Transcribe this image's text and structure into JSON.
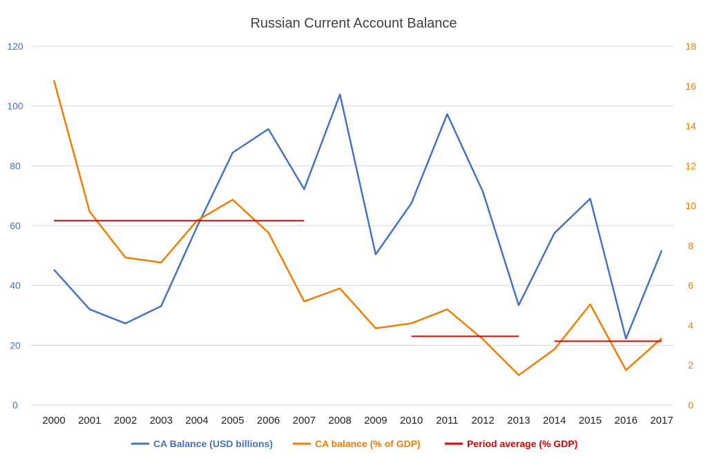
{
  "chart_data": {
    "type": "line",
    "title": "Russian Current Account Balance",
    "categories": [
      "2000",
      "2001",
      "2002",
      "2003",
      "2004",
      "2005",
      "2006",
      "2007",
      "2008",
      "2009",
      "2010",
      "2011",
      "2012",
      "2013",
      "2014",
      "2015",
      "2016",
      "2017"
    ],
    "y_left": {
      "range": [
        0,
        120
      ],
      "ticks": [
        0,
        20,
        40,
        60,
        80,
        100,
        120
      ],
      "color": "#4a6fc0"
    },
    "y_right": {
      "range": [
        0,
        18
      ],
      "ticks": [
        0,
        2,
        4,
        6,
        8,
        10,
        12,
        14,
        16,
        18
      ],
      "color": "#f07d00"
    },
    "grid": true,
    "legend_position": "bottom",
    "series": [
      {
        "name": "CA Balance (USD billions)",
        "axis": "left",
        "color": "#4472c4",
        "values": [
          45.3,
          32.0,
          27.3,
          33.1,
          59.5,
          84.4,
          92.3,
          72.2,
          103.9,
          50.4,
          67.5,
          97.3,
          71.3,
          33.4,
          57.5,
          69.0,
          22.2,
          51.7
        ]
      },
      {
        "name": "CA balance (% of GDP)",
        "axis": "right",
        "color": "#f07d00",
        "values": [
          16.3,
          9.7,
          7.4,
          7.15,
          9.25,
          10.3,
          8.65,
          5.2,
          5.85,
          3.85,
          4.1,
          4.8,
          3.3,
          1.5,
          2.8,
          5.05,
          1.75,
          3.35
        ]
      },
      {
        "name": "Period average (% GDP)",
        "axis": "right",
        "color": "#e00000",
        "segments": [
          {
            "from": "2000",
            "to": "2007",
            "value": 9.25
          },
          {
            "from": "2010",
            "to": "2013",
            "value": 3.45
          },
          {
            "from": "2014",
            "to": "2017",
            "value": 3.2
          }
        ]
      }
    ]
  }
}
